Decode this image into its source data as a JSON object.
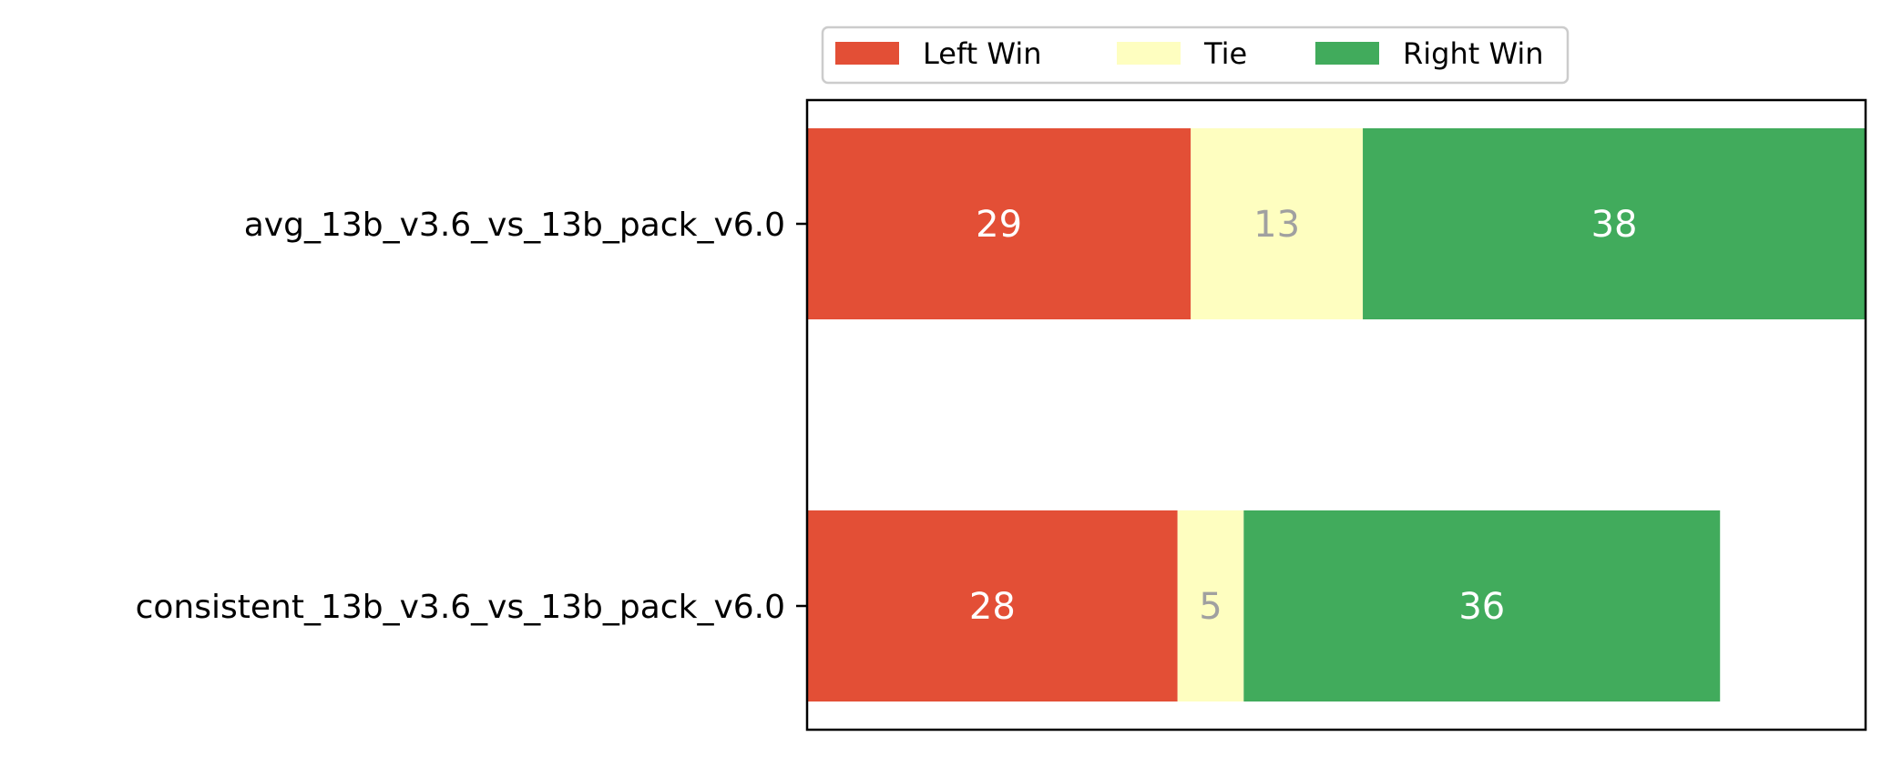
{
  "chart_data": {
    "type": "bar",
    "orientation": "horizontal",
    "stacked": true,
    "categories": [
      "avg_13b_v3.6_vs_13b_pack_v6.0",
      "consistent_13b_v3.6_vs_13b_pack_v6.0"
    ],
    "series": [
      {
        "name": "Left Win",
        "values": [
          29,
          28
        ],
        "color": "#e34f36",
        "label_color": "#ffffff"
      },
      {
        "name": "Tie",
        "values": [
          13,
          5
        ],
        "color": "#fefec0",
        "label_color": "#a0a0a0"
      },
      {
        "name": "Right Win",
        "values": [
          38,
          36
        ],
        "color": "#41ab5c",
        "label_color": "#ffffff"
      }
    ],
    "xlim": [
      0,
      80
    ],
    "title": "",
    "xlabel": "",
    "ylabel": "",
    "grid": false,
    "x_ticks_visible": false,
    "legend_position": "top, outside plot"
  }
}
